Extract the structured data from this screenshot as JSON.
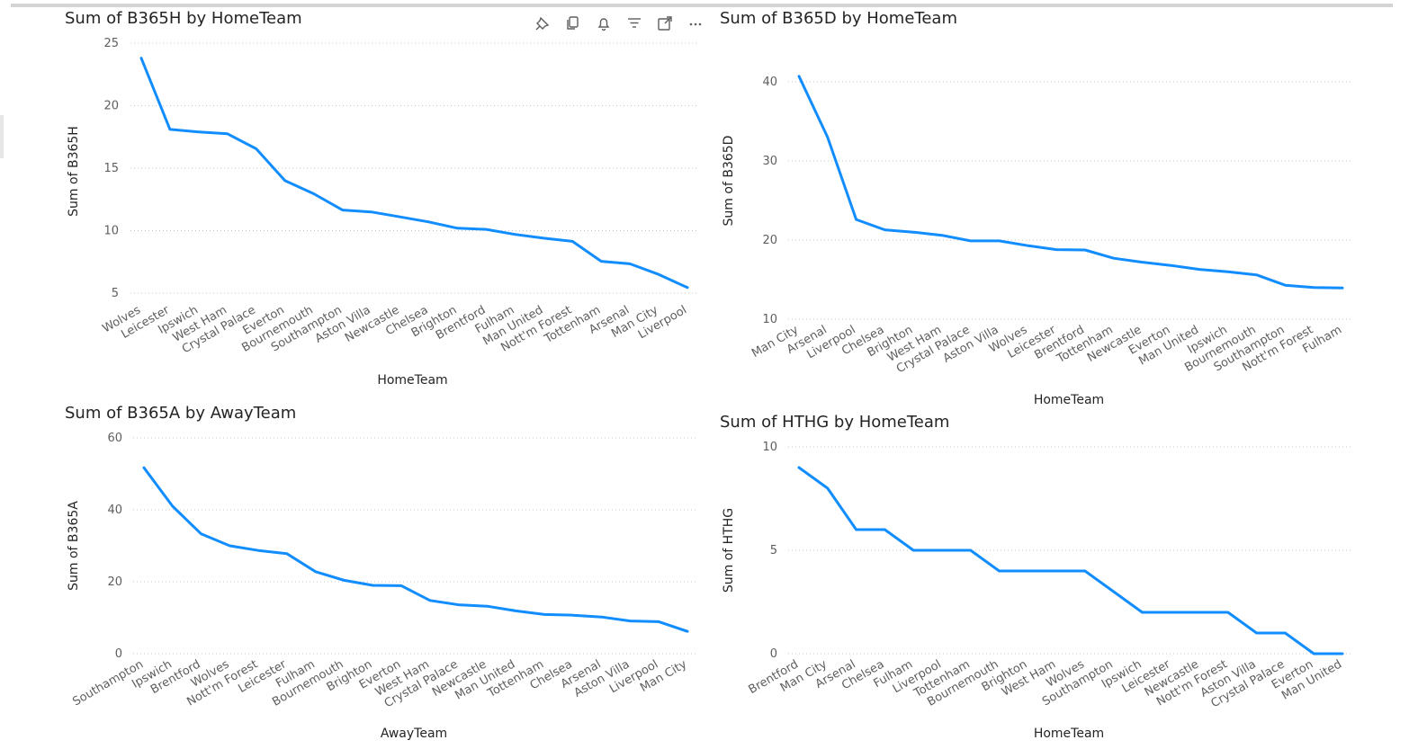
{
  "header_icons": [
    {
      "name": "pin-icon"
    },
    {
      "name": "copy-icon"
    },
    {
      "name": "bell-icon"
    },
    {
      "name": "filter-icon"
    },
    {
      "name": "focus-mode-icon"
    },
    {
      "name": "more-options-icon"
    }
  ],
  "chart_data": [
    {
      "type": "line",
      "title": "Sum of B365H by HomeTeam",
      "xlabel": "HomeTeam",
      "ylabel": "Sum of B365H",
      "ylim": [
        4.5,
        25
      ],
      "yticks": [
        "5",
        "10",
        "15",
        "20",
        "25"
      ],
      "color": "#118DFF",
      "categories": [
        "Wolves",
        "Leicester",
        "Ipswich",
        "West Ham",
        "Crystal Palace",
        "Everton",
        "Bournemouth",
        "Southampton",
        "Aston Villa",
        "Newcastle",
        "Chelsea",
        "Brighton",
        "Brentford",
        "Fulham",
        "Man United",
        "Nott'm Forest",
        "Tottenham",
        "Arsenal",
        "Man City",
        "Liverpool"
      ],
      "values": [
        23.8,
        18.1,
        17.9,
        17.75,
        16.55,
        14.0,
        12.95,
        11.65,
        11.5,
        11.1,
        10.7,
        10.2,
        10.1,
        9.7,
        9.4,
        9.15,
        7.55,
        7.35,
        6.5,
        5.45
      ]
    },
    {
      "type": "line",
      "title": "Sum of B365D by HomeTeam",
      "xlabel": "HomeTeam",
      "ylabel": "Sum of B365D",
      "ylim": [
        10,
        45
      ],
      "yticks": [
        "10",
        "20",
        "30",
        "40"
      ],
      "color": "#118DFF",
      "categories": [
        "Man City",
        "Arsenal",
        "Liverpool",
        "Chelsea",
        "Brighton",
        "West Ham",
        "Crystal Palace",
        "Aston Villa",
        "Wolves",
        "Leicester",
        "Brentford",
        "Tottenham",
        "Newcastle",
        "Everton",
        "Man United",
        "Ipswich",
        "Bournemouth",
        "Southampton",
        "Nott'm Forest",
        "Fulham"
      ],
      "values": [
        40.7,
        33.0,
        22.6,
        21.3,
        21.0,
        20.6,
        19.9,
        19.9,
        19.3,
        18.8,
        18.75,
        17.7,
        17.2,
        16.8,
        16.3,
        16.0,
        15.6,
        14.3,
        14.0,
        13.95
      ]
    },
    {
      "type": "line",
      "title": "Sum of B365A by AwayTeam",
      "xlabel": "AwayTeam",
      "ylabel": "Sum of B365A",
      "ylim": [
        0,
        60
      ],
      "yticks": [
        "0",
        "20",
        "40",
        "60"
      ],
      "color": "#118DFF",
      "categories": [
        "Southampton",
        "Ipswich",
        "Brentford",
        "Wolves",
        "Nott'm Forest",
        "Leicester",
        "Fulham",
        "Bournemouth",
        "Brighton",
        "Everton",
        "West Ham",
        "Crystal Palace",
        "Newcastle",
        "Man United",
        "Tottenham",
        "Chelsea",
        "Arsenal",
        "Aston Villa",
        "Liverpool",
        "Man City"
      ],
      "values": [
        51.7,
        41.0,
        33.3,
        30.0,
        28.7,
        27.8,
        22.8,
        20.4,
        19.0,
        18.9,
        14.8,
        13.6,
        13.2,
        11.9,
        10.9,
        10.7,
        10.2,
        9.1,
        8.9,
        6.2
      ]
    },
    {
      "type": "line",
      "title": "Sum of HTHG by HomeTeam",
      "xlabel": "HomeTeam",
      "ylabel": "Sum of HTHG",
      "ylim": [
        0,
        10
      ],
      "yticks": [
        "0",
        "5",
        "10"
      ],
      "color": "#118DFF",
      "categories": [
        "Brentford",
        "Man City",
        "Arsenal",
        "Chelsea",
        "Fulham",
        "Liverpool",
        "Tottenham",
        "Bournemouth",
        "Brighton",
        "West Ham",
        "Wolves",
        "Southampton",
        "Ipswich",
        "Leicester",
        "Newcastle",
        "Nott'm Forest",
        "Aston Villa",
        "Crystal Palace",
        "Everton",
        "Man United"
      ],
      "values": [
        9,
        8,
        6,
        6,
        5,
        5,
        5,
        4,
        4,
        4,
        4,
        3,
        2,
        2,
        2,
        2,
        1,
        1,
        0,
        0
      ]
    }
  ]
}
